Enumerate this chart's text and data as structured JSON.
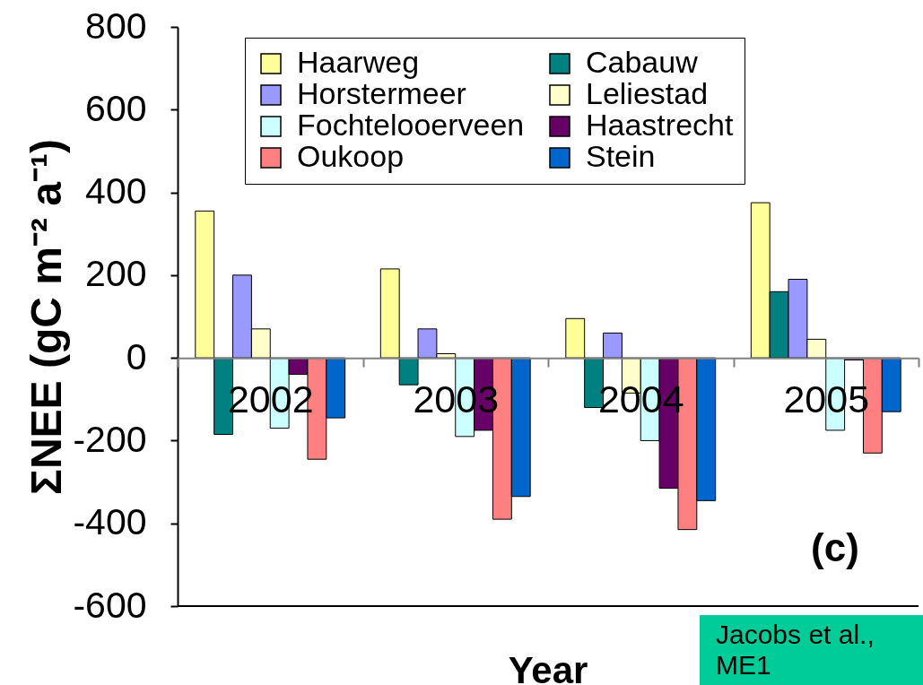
{
  "chart_data": {
    "type": "bar",
    "xlabel": "Year",
    "ylabel": "ΣNEE (gC m⁻² a⁻¹)",
    "categories": [
      "2002",
      "2003",
      "2004",
      "2005"
    ],
    "series": [
      {
        "name": "Haarweg",
        "color": "#ffff99",
        "values": [
          355,
          215,
          95,
          375
        ]
      },
      {
        "name": "Cabauw",
        "color": "#008080",
        "values": [
          -185,
          -65,
          -120,
          160
        ]
      },
      {
        "name": "Horstermeer",
        "color": "#9999ff",
        "values": [
          200,
          70,
          60,
          190
        ]
      },
      {
        "name": "Leliestad",
        "color": "#ffffcc",
        "values": [
          70,
          10,
          -85,
          45
        ]
      },
      {
        "name": "Fochtelooerveen",
        "color": "#ccffff",
        "values": [
          -170,
          -190,
          -200,
          -175
        ]
      },
      {
        "name": "Haastrecht",
        "color": "#660066",
        "values": [
          -40,
          -175,
          -315,
          -5
        ]
      },
      {
        "name": "Oukoop",
        "color": "#ff8080",
        "values": [
          -245,
          -390,
          -415,
          -230
        ]
      },
      {
        "name": "Stein",
        "color": "#0066cc",
        "values": [
          -145,
          -335,
          -345,
          -130
        ]
      }
    ],
    "ylim": [
      -600,
      800
    ],
    "yticks": [
      -600,
      -400,
      -200,
      0,
      200,
      400,
      600,
      800
    ],
    "legend": "top",
    "annotations": [
      "(c)",
      "Jacobs et al.,\nME1"
    ]
  }
}
